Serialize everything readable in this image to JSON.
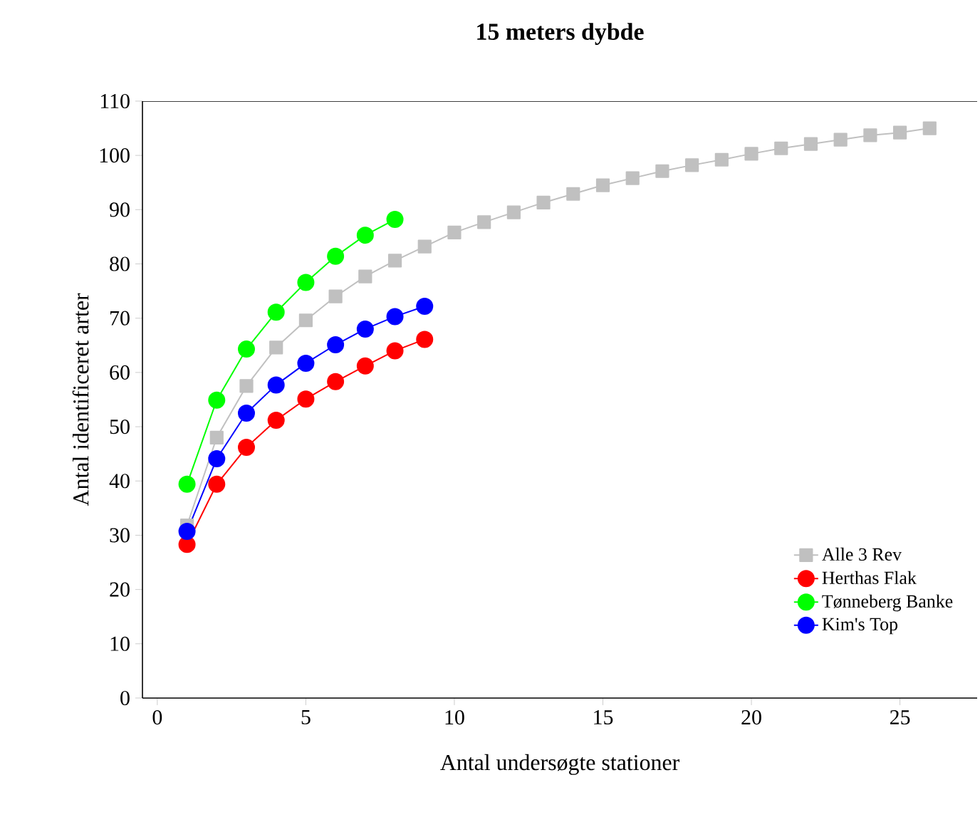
{
  "chart_data": {
    "type": "line",
    "title": "15 meters dybde",
    "xlabel": "Antal undersøgte stationer",
    "ylabel": "Antal identificeret arter",
    "xlim": [
      -0.5,
      27.6
    ],
    "ylim": [
      0,
      110
    ],
    "xticks": [
      0,
      5,
      10,
      15,
      20,
      25
    ],
    "yticks": [
      0,
      10,
      20,
      30,
      40,
      50,
      60,
      70,
      80,
      90,
      100,
      110
    ],
    "legend": "bottom right",
    "grid": false,
    "series": [
      {
        "name": "Alle 3 Rev",
        "color": "#c0c0c0",
        "marker": "square",
        "x": [
          1,
          2,
          3,
          4,
          5,
          6,
          7,
          8,
          9,
          10,
          11,
          12,
          13,
          14,
          15,
          16,
          17,
          18,
          19,
          20,
          21,
          22,
          23,
          24,
          25,
          26
        ],
        "values": [
          31.8,
          48,
          57.5,
          64.6,
          69.6,
          74,
          77.7,
          80.6,
          83.2,
          85.8,
          87.7,
          89.5,
          91.3,
          92.9,
          94.5,
          95.8,
          97.1,
          98.2,
          99.2,
          100.3,
          101.3,
          102.1,
          102.9,
          103.7,
          104.2,
          105
        ]
      },
      {
        "name": "Herthas Flak",
        "color": "#ff0000",
        "marker": "circle",
        "x": [
          1,
          2,
          3,
          4,
          5,
          6,
          7,
          8,
          9
        ],
        "values": [
          28.3,
          39.4,
          46.2,
          51.2,
          55.1,
          58.3,
          61.2,
          64,
          66.1
        ]
      },
      {
        "name": "Tønneberg Banke",
        "color": "#00ff00",
        "marker": "circle",
        "x": [
          1,
          2,
          3,
          4,
          5,
          6,
          7,
          8
        ],
        "values": [
          39.4,
          54.9,
          64.3,
          71.1,
          76.6,
          81.4,
          85.3,
          88.2
        ]
      },
      {
        "name": "Kim's Top",
        "color": "#0000ff",
        "marker": "circle",
        "x": [
          1,
          2,
          3,
          4,
          5,
          6,
          7,
          8,
          9
        ],
        "values": [
          30.7,
          44.1,
          52.5,
          57.7,
          61.7,
          65.1,
          68,
          70.3,
          72.2
        ]
      }
    ]
  }
}
